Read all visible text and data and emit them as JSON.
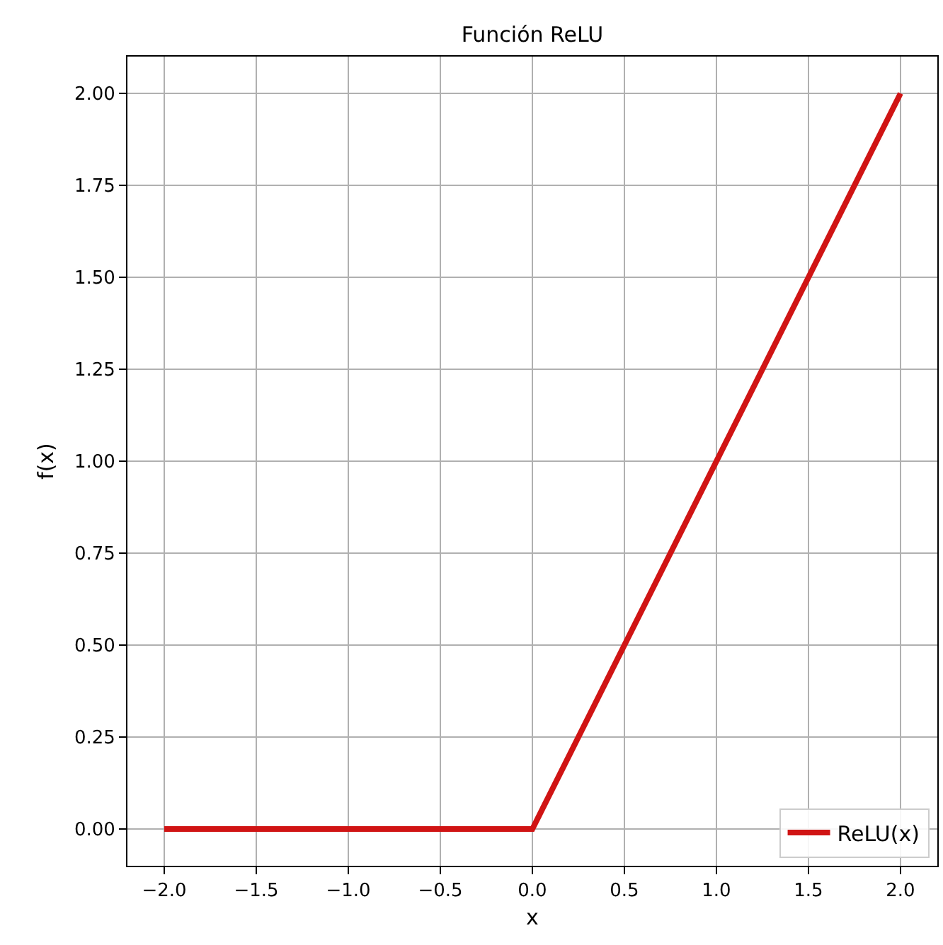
{
  "chart_data": {
    "type": "line",
    "title": "Función ReLU",
    "xlabel": "x",
    "ylabel": "f(x)",
    "x": [
      -2,
      0,
      2
    ],
    "series": [
      {
        "name": "ReLU(x)",
        "color": "#d01414",
        "values": [
          0,
          0,
          2
        ]
      }
    ],
    "xlim": [
      -2.2,
      2.2
    ],
    "xticks": [
      {
        "value": -2,
        "label": "−2.0"
      },
      {
        "value": -1.5,
        "label": "−1.5"
      },
      {
        "value": -1,
        "label": "−1.0"
      },
      {
        "value": -0.5,
        "label": "−0.5"
      },
      {
        "value": 0,
        "label": "0.0"
      },
      {
        "value": 0.5,
        "label": "0.5"
      },
      {
        "value": 1,
        "label": "1.0"
      },
      {
        "value": 1.5,
        "label": "1.5"
      },
      {
        "value": 2,
        "label": "2.0"
      }
    ],
    "ylim": [
      -0.1,
      2.1
    ],
    "yticks": [
      {
        "value": 0,
        "label": "0.00"
      },
      {
        "value": 0.25,
        "label": "0.25"
      },
      {
        "value": 0.5,
        "label": "0.50"
      },
      {
        "value": 0.75,
        "label": "0.75"
      },
      {
        "value": 1,
        "label": "1.00"
      },
      {
        "value": 1.25,
        "label": "1.25"
      },
      {
        "value": 1.5,
        "label": "1.50"
      },
      {
        "value": 1.75,
        "label": "1.75"
      },
      {
        "value": 2,
        "label": "2.00"
      }
    ],
    "grid": true,
    "legend": "bottom right",
    "marker": "none",
    "line_style": "solid"
  }
}
